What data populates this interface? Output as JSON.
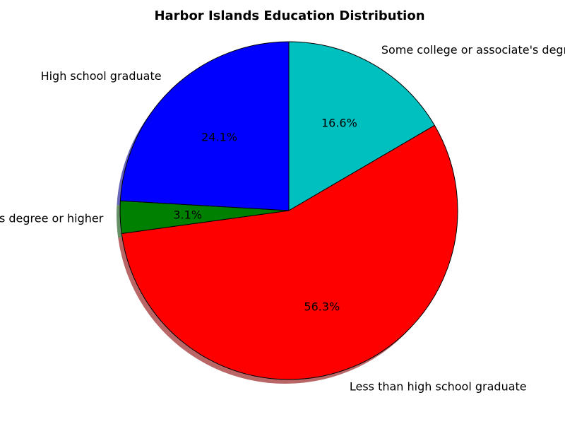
{
  "chart_data": {
    "type": "pie",
    "title": "Harbor Islands Education Distribution",
    "slices": [
      {
        "label": "Some college or associate's degree",
        "value": 16.6,
        "pct_label": "16.6%",
        "color": "#00bfbf",
        "exploded": false
      },
      {
        "label": "Less than high school graduate",
        "value": 56.3,
        "pct_label": "56.3%",
        "color": "#ff0000",
        "exploded": true
      },
      {
        "label": "Bachelor's degree or higher",
        "value": 3.1,
        "pct_label": "3.1%",
        "color": "#008000",
        "exploded": true
      },
      {
        "label": "High school graduate",
        "value": 24.1,
        "pct_label": "24.1%",
        "color": "#0000ff",
        "exploded": true
      }
    ],
    "start_angle_deg": 90,
    "direction": "clockwise",
    "shadow": true,
    "edge_color": "#000000"
  }
}
